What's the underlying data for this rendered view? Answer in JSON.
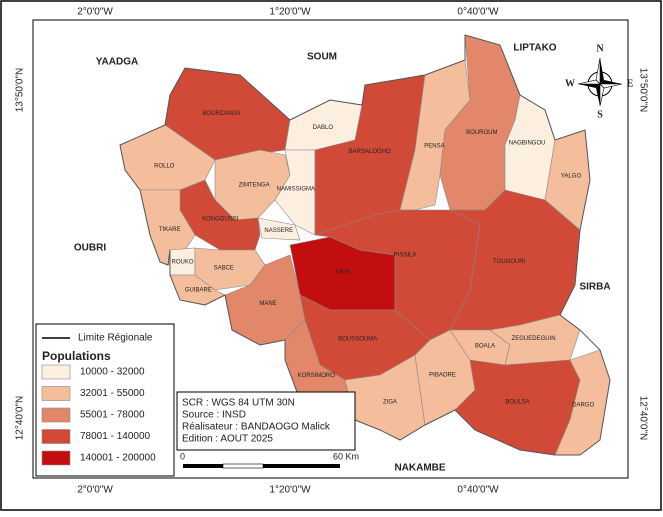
{
  "graticule": {
    "lon": [
      "2°0'0\"W",
      "1°20'0\"W",
      "0°40'0\"W"
    ],
    "lat": [
      "13°50'0\"N",
      "12°40'0\"N"
    ]
  },
  "neighbors": [
    "YAADGA",
    "SOUM",
    "LIPTAKO",
    "OUBRI",
    "SIRBA",
    "NAKAMBE"
  ],
  "north_arrow": {
    "n": "N",
    "s": "S",
    "e": "E",
    "w": "W"
  },
  "legend": {
    "boundary_label": "Limite Régionale",
    "title": "Populations",
    "classes": [
      {
        "label": "10000 - 32000",
        "color": "#fdefe0"
      },
      {
        "label": "32001 - 55000",
        "color": "#f4bd9c"
      },
      {
        "label": "55001 - 78000",
        "color": "#e3876a"
      },
      {
        "label": "78001 - 140000",
        "color": "#d14a38"
      },
      {
        "label": "140001 - 200000",
        "color": "#c20e0e"
      }
    ]
  },
  "communes": [
    {
      "name": "BOURZANGA",
      "class": 3
    },
    {
      "name": "DABLO",
      "class": 0
    },
    {
      "name": "ROLLO",
      "class": 1
    },
    {
      "name": "ZIMTENGA",
      "class": 1
    },
    {
      "name": "NAMISSIGMA",
      "class": 0
    },
    {
      "name": "KONGOUSSI",
      "class": 3
    },
    {
      "name": "TIKARE",
      "class": 1
    },
    {
      "name": "NASSERE",
      "class": 0
    },
    {
      "name": "ROUKO",
      "class": 0
    },
    {
      "name": "SABCE",
      "class": 1
    },
    {
      "name": "GUIBARE",
      "class": 1
    },
    {
      "name": "BARSALOGHO",
      "class": 3
    },
    {
      "name": "PENSA",
      "class": 1
    },
    {
      "name": "BOUROUM",
      "class": 2
    },
    {
      "name": "NAGBINGOU",
      "class": 0
    },
    {
      "name": "YALGO",
      "class": 1
    },
    {
      "name": "KAYA",
      "class": 4
    },
    {
      "name": "PISSILA",
      "class": 3
    },
    {
      "name": "TOUGOURI",
      "class": 3
    },
    {
      "name": "MANE",
      "class": 2
    },
    {
      "name": "BOUSSOUMA",
      "class": 3
    },
    {
      "name": "KORSIMORO",
      "class": 2
    },
    {
      "name": "ZIGA",
      "class": 1
    },
    {
      "name": "PIBAORE",
      "class": 1
    },
    {
      "name": "BOALA",
      "class": 1
    },
    {
      "name": "ZEGUEDEGUIN",
      "class": 1
    },
    {
      "name": "BOULSA",
      "class": 3
    },
    {
      "name": "DARGO",
      "class": 1
    }
  ],
  "info": [
    "SCR : WGS 84 UTM 30N",
    "Source : INSD",
    "Réalisateur : BANDAOGO Malick",
    "Edition : AOUT 2025"
  ],
  "scale": {
    "start": "0",
    "end": "60 Km"
  }
}
